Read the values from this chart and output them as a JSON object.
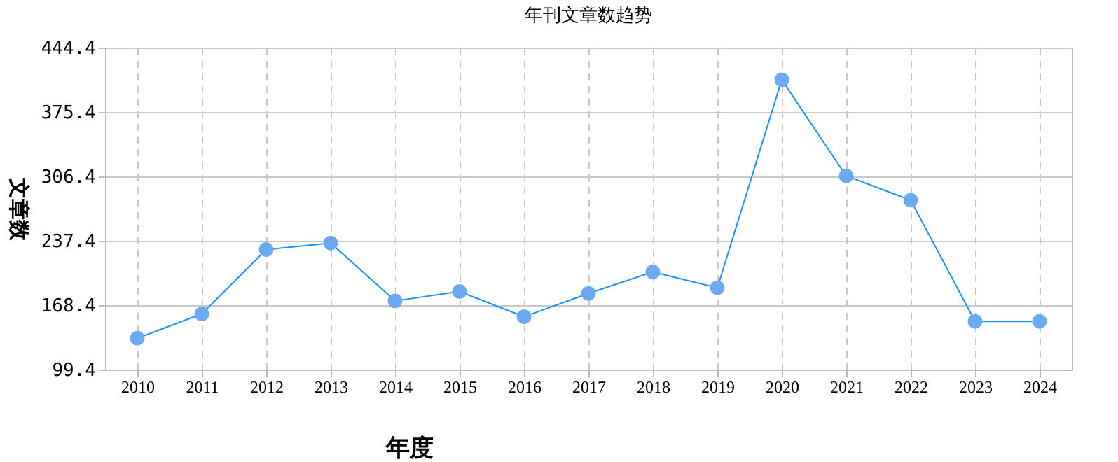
{
  "chart_data": {
    "type": "line",
    "title": "年刊文章数趋势",
    "xlabel": "年度",
    "ylabel": "文章数",
    "categories": [
      "2010",
      "2011",
      "2012",
      "2013",
      "2014",
      "2015",
      "2016",
      "2017",
      "2018",
      "2019",
      "2020",
      "2021",
      "2022",
      "2023",
      "2024"
    ],
    "series": [
      {
        "color": "#1e90ff",
        "values": [
          133,
          159,
          228,
          235,
          173,
          183,
          156,
          181,
          204,
          187,
          410,
          307,
          281,
          151,
          151
        ]
      }
    ],
    "ylim": [
      99.4,
      444.4
    ],
    "yticks": [
      99.4,
      168.4,
      237.4,
      306.4,
      375.4,
      444.4
    ],
    "grid": true,
    "marker": "circle",
    "line_style": "solid"
  }
}
